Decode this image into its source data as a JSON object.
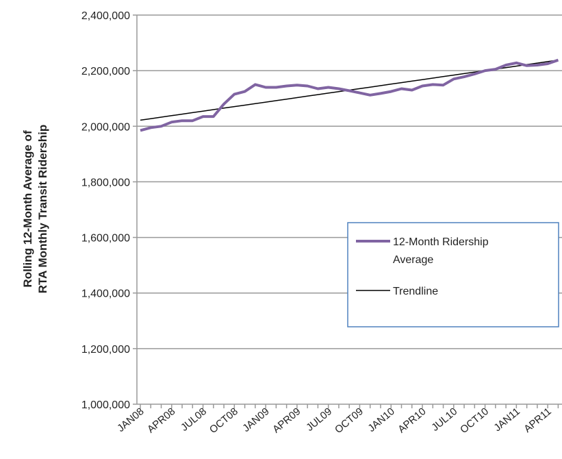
{
  "chart_data": {
    "type": "line",
    "ylabel": [
      "Rolling 12-Month Average of",
      "RTA Monthly Transit Ridership"
    ],
    "categories": [
      "JAN08",
      null,
      null,
      "APR08",
      null,
      null,
      "JUL08",
      null,
      null,
      "OCT08",
      null,
      null,
      "JAN09",
      null,
      null,
      "APR09",
      null,
      null,
      "JUL09",
      null,
      null,
      "OCT09",
      null,
      null,
      "JAN10",
      null,
      null,
      "APR10",
      null,
      null,
      "JUL10",
      null,
      null,
      "OCT10",
      null,
      null,
      "JAN11",
      null,
      null,
      "APR11",
      null
    ],
    "series": [
      {
        "name": "12-Month Ridership Average",
        "color": "#8064a2",
        "width": 4,
        "values": [
          1985000,
          1995000,
          2000000,
          2015000,
          2020000,
          2020000,
          2035000,
          2035000,
          2080000,
          2115000,
          2125000,
          2150000,
          2140000,
          2140000,
          2145000,
          2148000,
          2145000,
          2135000,
          2140000,
          2135000,
          2128000,
          2120000,
          2112000,
          2118000,
          2125000,
          2135000,
          2130000,
          2145000,
          2150000,
          2148000,
          2170000,
          2178000,
          2188000,
          2200000,
          2205000,
          2220000,
          2228000,
          2218000,
          2220000,
          2225000,
          2238000
        ]
      },
      {
        "name": "Trendline",
        "color": "#000000",
        "width": 1.5,
        "values": [
          2022000,
          2027400,
          2032800,
          2038200,
          2043600,
          2049000,
          2054400,
          2059800,
          2065200,
          2070600,
          2076000,
          2081400,
          2086800,
          2092200,
          2097600,
          2103000,
          2108400,
          2113800,
          2119200,
          2124600,
          2130000,
          2135400,
          2140800,
          2146200,
          2151600,
          2157000,
          2162400,
          2167800,
          2173200,
          2178600,
          2184000,
          2189400,
          2194800,
          2200200,
          2205600,
          2211000,
          2216400,
          2221800,
          2227200,
          2232600,
          2238000
        ]
      }
    ],
    "ylim": [
      1000000,
      2400000
    ],
    "yticks": [
      {
        "value": 1000000,
        "label": "1,000,000"
      },
      {
        "value": 1200000,
        "label": "1,200,000"
      },
      {
        "value": 1400000,
        "label": "1,400,000"
      },
      {
        "value": 1600000,
        "label": "1,600,000"
      },
      {
        "value": 1800000,
        "label": "1,800,000"
      },
      {
        "value": 2000000,
        "label": "2,000,000"
      },
      {
        "value": 2200000,
        "label": "2,200,000"
      },
      {
        "value": 2400000,
        "label": "2,400,000"
      }
    ],
    "grid": true,
    "legend": "right"
  }
}
